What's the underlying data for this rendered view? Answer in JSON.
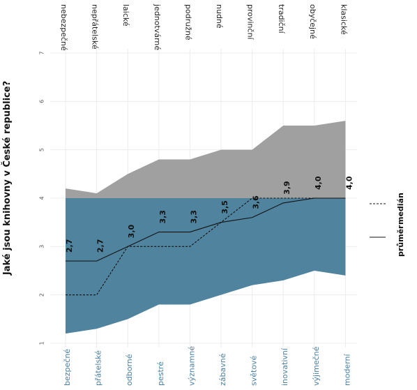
{
  "chart_data": {
    "type": "area",
    "title": "Jaké jsou knihovny v České republice?",
    "ylim": [
      1,
      7
    ],
    "yticks": [
      "1",
      "2",
      "3",
      "4",
      "5",
      "6",
      "7"
    ],
    "grid": true,
    "legend_position": "right",
    "categories_top": [
      "nebezpečné",
      "nepřátelské",
      "laické",
      "jednotvárné",
      "podružné",
      "nudné",
      "provinční",
      "tradiční",
      "obyčejné",
      "klasické"
    ],
    "categories_bottom": [
      "bezpečné",
      "přátelské",
      "odborné",
      "pestré",
      "významné",
      "zábavné",
      "světové",
      "inovativní",
      "výjimečné",
      "moderní"
    ],
    "band_upper": [
      4.2,
      4.1,
      4.5,
      4.8,
      4.8,
      5.0,
      5.0,
      5.5,
      5.5,
      5.6
    ],
    "band_lower": [
      1.2,
      1.3,
      1.5,
      1.8,
      1.8,
      2.0,
      2.2,
      2.3,
      2.5,
      2.4
    ],
    "midline": 4,
    "series": [
      {
        "name": "průměr",
        "style": "solid",
        "values": [
          2.7,
          2.7,
          3.0,
          3.3,
          3.3,
          3.5,
          3.6,
          3.9,
          4.0,
          4.0
        ]
      },
      {
        "name": "medián",
        "style": "dashed",
        "values": [
          2.0,
          2.0,
          3.0,
          3.0,
          3.0,
          3.5,
          4.0,
          4.0,
          4.0,
          4.0
        ]
      }
    ],
    "data_labels": [
      "2,7",
      "2,7",
      "3,0",
      "3,3",
      "3,3",
      "3,5",
      "3,6",
      "3,9",
      "4,0",
      "4,0"
    ],
    "colors": {
      "upper_fill": "#a0a0a0",
      "lower_fill": "#50839e",
      "lines": "#111111"
    }
  }
}
